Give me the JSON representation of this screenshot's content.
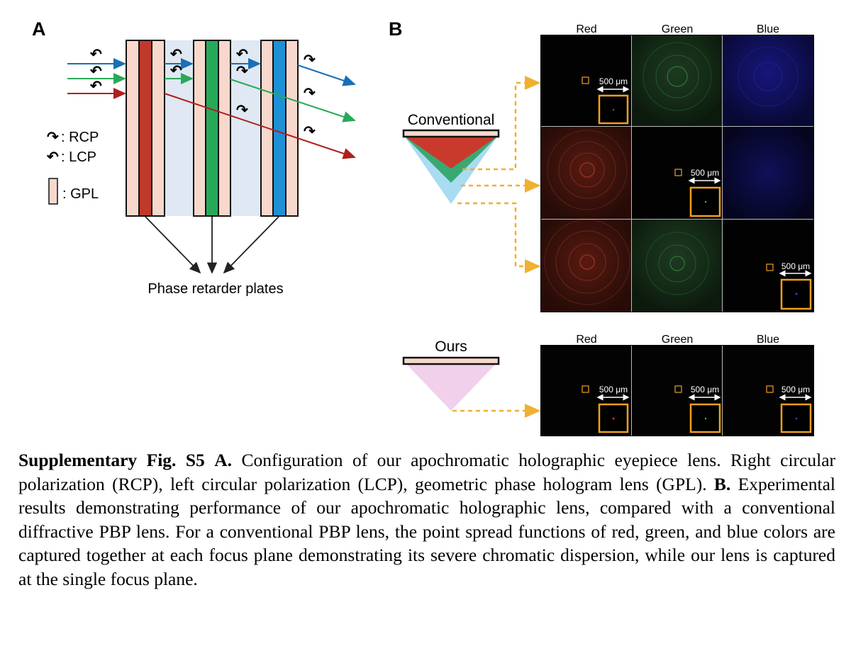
{
  "panelA": {
    "label": "A",
    "legend": {
      "rcp": ": RCP",
      "lcp": ": LCP",
      "gpl": ": GPL"
    },
    "plates_label": "Phase retarder plates"
  },
  "panelB": {
    "label": "B",
    "conventional_label": "Conventional",
    "ours_label": "Ours",
    "columns": [
      "Red",
      "Green",
      "Blue"
    ],
    "scale_label": "500 μm"
  },
  "colors": {
    "red": "#c0392b",
    "green": "#27a95a",
    "blue": "#1e90d6",
    "gpl_fill": "#f8d8cc",
    "gap_fill": "#dfe8f3",
    "inset_border": "#f0a020",
    "arrow_dash": "#f0b030"
  },
  "caption": {
    "fig_label": "Supplementary Fig. S5",
    "part_a_label": "A.",
    "part_a_text": " Configuration of our apochromatic holographic eyepiece lens. Right circular polarization (RCP), left circular polarization (LCP), geometric phase hologram lens (GPL). ",
    "part_b_label": "B.",
    "part_b_text": " Experimental results demonstrating performance of our apochromatic holographic lens, compared with a conventional diffractive PBP lens.  For a conventional PBP lens, the point spread functions of red, green, and blue colors are captured together at each focus plane demonstrating its severe chromatic dispersion, while our lens is captured at the single focus plane."
  }
}
